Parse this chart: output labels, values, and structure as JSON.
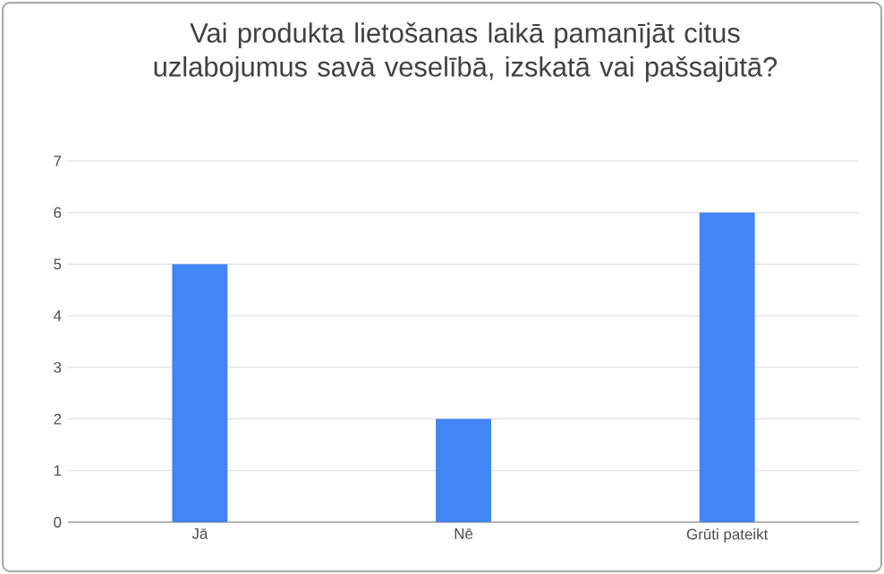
{
  "chart_data": {
    "type": "bar",
    "title": "Vai produkta lietošanas laikā pamanījāt citus uzlabojumus savā veselībā, izskatā vai pašsajūtā?",
    "categories": [
      "Jā",
      "Nē",
      "Grūti pateikt"
    ],
    "values": [
      5,
      2,
      6
    ],
    "color": "#4285f4",
    "ylim": [
      0,
      7
    ],
    "yticks": [
      0,
      1,
      2,
      3,
      4,
      5,
      6,
      7
    ],
    "grid": "y"
  }
}
